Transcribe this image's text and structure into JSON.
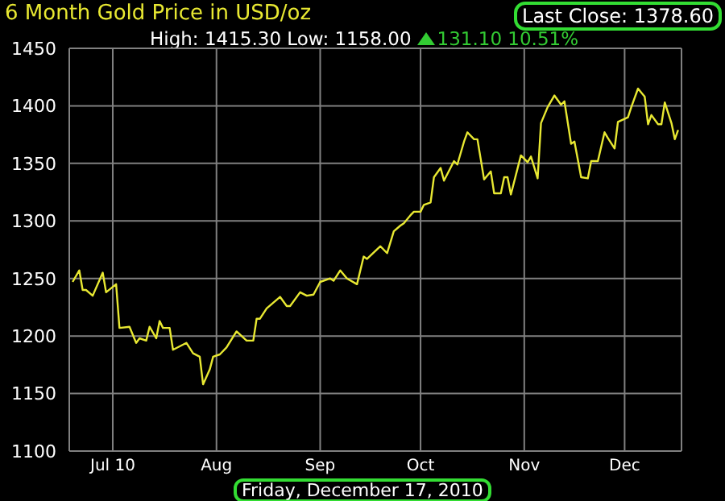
{
  "chart_data": {
    "type": "line",
    "title": "6 Month Gold Price in USD/oz",
    "subtitle": "High: 1415.30 Low: 1158.00",
    "annotations": [
      "131.10 10.51%",
      "Last Close: 1378.60",
      "Friday, December 17, 2010"
    ],
    "x": [
      "2010-06-19",
      "2010-06-21",
      "2010-06-22",
      "2010-06-23",
      "2010-06-25",
      "2010-06-28",
      "2010-06-29",
      "2010-07-02",
      "2010-07-03",
      "2010-07-06",
      "2010-07-08",
      "2010-07-09",
      "2010-07-11",
      "2010-07-12",
      "2010-07-14",
      "2010-07-15",
      "2010-07-16",
      "2010-07-18",
      "2010-07-19",
      "2010-07-21",
      "2010-07-23",
      "2010-07-25",
      "2010-07-27",
      "2010-07-28",
      "2010-07-30",
      "2010-07-31",
      "2010-08-02",
      "2010-08-04",
      "2010-08-07",
      "2010-08-10",
      "2010-08-12",
      "2010-08-13",
      "2010-08-14",
      "2010-08-16",
      "2010-08-20",
      "2010-08-22",
      "2010-08-23",
      "2010-08-26",
      "2010-08-28",
      "2010-08-30",
      "2010-09-01",
      "2010-09-04",
      "2010-09-05",
      "2010-09-07",
      "2010-09-09",
      "2010-09-12",
      "2010-09-14",
      "2010-09-15",
      "2010-09-19",
      "2010-09-21",
      "2010-09-23",
      "2010-09-25",
      "2010-09-26",
      "2010-09-28",
      "2010-09-29",
      "2010-10-01",
      "2010-10-02",
      "2010-10-04",
      "2010-10-05",
      "2010-10-07",
      "2010-10-08",
      "2010-10-11",
      "2010-10-12",
      "2010-10-14",
      "2010-10-15",
      "2010-10-17",
      "2010-10-18",
      "2010-10-20",
      "2010-10-22",
      "2010-10-23",
      "2010-10-25",
      "2010-10-26",
      "2010-10-27",
      "2010-10-28",
      "2010-10-31",
      "2010-11-02",
      "2010-11-03",
      "2010-11-05",
      "2010-11-06",
      "2010-11-08",
      "2010-11-10",
      "2010-11-12",
      "2010-11-13",
      "2010-11-15",
      "2010-11-16",
      "2010-11-18",
      "2010-11-20",
      "2010-11-21",
      "2010-11-23",
      "2010-11-25",
      "2010-11-26",
      "2010-11-28",
      "2010-11-29",
      "2010-12-02",
      "2010-12-03",
      "2010-12-05",
      "2010-12-07",
      "2010-12-08",
      "2010-12-09",
      "2010-12-11",
      "2010-12-12",
      "2010-12-13",
      "2010-12-15",
      "2010-12-16",
      "2010-12-17"
    ],
    "series": [
      {
        "color": "#e8e832",
        "values": [
          1247,
          1257,
          1240,
          1240,
          1235,
          1255,
          1238,
          1245,
          1207,
          1208,
          1194,
          1198,
          1196,
          1208,
          1198,
          1213,
          1207,
          1207,
          1188,
          1191,
          1194,
          1185,
          1182,
          1158,
          1171,
          1182,
          1184,
          1190,
          1204,
          1196,
          1196,
          1215,
          1215,
          1224,
          1234,
          1226,
          1226,
          1238,
          1235,
          1236,
          1247,
          1250,
          1248,
          1257,
          1250,
          1245,
          1269,
          1267,
          1278,
          1272,
          1291,
          1296,
          1298,
          1305,
          1308,
          1308,
          1314,
          1316,
          1338,
          1346,
          1335,
          1352,
          1349,
          1369,
          1377,
          1371,
          1371,
          1336,
          1343,
          1324,
          1324,
          1338,
          1338,
          1323,
          1357,
          1351,
          1356,
          1337,
          1385,
          1399,
          1409,
          1401,
          1404,
          1367,
          1369,
          1338,
          1337,
          1352,
          1352,
          1377,
          1372,
          1363,
          1386,
          1390,
          1399,
          1415,
          1408,
          1384,
          1392,
          1384,
          1384,
          1403,
          1385,
          1371,
          1379
        ]
      }
    ],
    "xlim": [
      "2010-06-18",
      "2010-12-18"
    ],
    "xticks": [
      {
        "value": "2010-07-01",
        "label": "Jul 10"
      },
      {
        "value": "2010-08-01",
        "label": "Aug"
      },
      {
        "value": "2010-09-01",
        "label": "Sep"
      },
      {
        "value": "2010-10-01",
        "label": "Oct"
      },
      {
        "value": "2010-11-01",
        "label": "Nov"
      },
      {
        "value": "2010-12-01",
        "label": "Dec"
      }
    ],
    "ylim": [
      1100,
      1450
    ],
    "yticks": [
      1100,
      1150,
      1200,
      1250,
      1300,
      1350,
      1400,
      1450
    ],
    "grid": true,
    "marker": "none",
    "line_style": "solid"
  }
}
